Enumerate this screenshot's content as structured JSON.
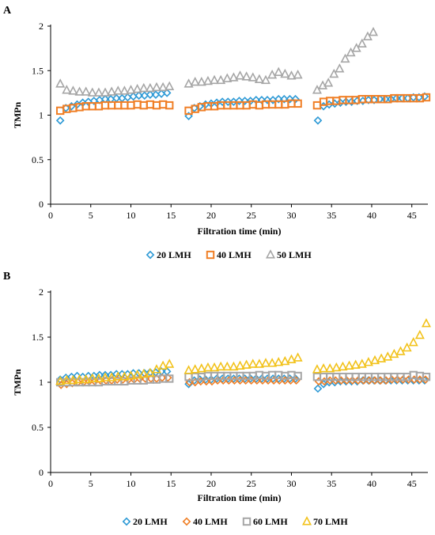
{
  "chart_data": [
    {
      "panel_label": "A",
      "type": "scatter",
      "xlabel": "Filtration time (min)",
      "ylabel": "TMPn",
      "xlim": [
        0,
        47
      ],
      "ylim": [
        0,
        2
      ],
      "xticks": [
        0,
        5,
        10,
        15,
        20,
        25,
        30,
        35,
        40,
        45
      ],
      "yticks": [
        0,
        0.5,
        1,
        1.5,
        2
      ],
      "grid": false,
      "legend_position": "bottom",
      "series": [
        {
          "name": "20 LMH",
          "marker": "diamond",
          "color": "#2E9AD6",
          "x": [
            1.2,
            1.9,
            2.6,
            3.3,
            4.0,
            4.7,
            5.4,
            6.1,
            6.8,
            7.5,
            8.2,
            8.9,
            9.6,
            10.3,
            11.0,
            11.7,
            12.4,
            13.1,
            13.8,
            14.5,
            17.2,
            17.9,
            18.6,
            19.3,
            20.0,
            20.7,
            21.4,
            22.1,
            22.8,
            23.5,
            24.2,
            24.9,
            25.6,
            26.3,
            27.0,
            27.7,
            28.4,
            29.1,
            29.8,
            30.5,
            33.3,
            34.0,
            34.7,
            35.4,
            36.1,
            36.8,
            37.5,
            38.2,
            38.9,
            39.6,
            40.3,
            41.0,
            41.7,
            42.4,
            43.1,
            43.8,
            44.5,
            45.2,
            45.9,
            46.6
          ],
          "y": [
            0.94,
            1.08,
            1.1,
            1.12,
            1.14,
            1.15,
            1.16,
            1.17,
            1.18,
            1.18,
            1.19,
            1.19,
            1.2,
            1.21,
            1.22,
            1.22,
            1.23,
            1.23,
            1.24,
            1.25,
            0.99,
            1.08,
            1.1,
            1.12,
            1.13,
            1.14,
            1.15,
            1.15,
            1.15,
            1.16,
            1.16,
            1.16,
            1.17,
            1.17,
            1.17,
            1.17,
            1.18,
            1.18,
            1.18,
            1.18,
            0.94,
            1.1,
            1.12,
            1.13,
            1.14,
            1.15,
            1.15,
            1.16,
            1.16,
            1.17,
            1.17,
            1.18,
            1.18,
            1.18,
            1.19,
            1.19,
            1.19,
            1.2,
            1.2,
            1.21
          ]
        },
        {
          "name": "40 LMH",
          "marker": "square",
          "color": "#F07F26",
          "x": [
            1.2,
            2.0,
            2.8,
            3.6,
            4.4,
            5.2,
            6.0,
            6.8,
            7.6,
            8.4,
            9.2,
            10.0,
            10.8,
            11.6,
            12.4,
            13.2,
            14.0,
            14.8,
            17.2,
            18.0,
            18.8,
            19.6,
            20.4,
            21.2,
            22.0,
            22.8,
            23.6,
            24.4,
            25.2,
            26.0,
            26.8,
            27.6,
            28.4,
            29.2,
            30.0,
            30.8,
            33.2,
            34.0,
            34.8,
            35.6,
            36.4,
            37.2,
            38.0,
            38.8,
            39.6,
            40.4,
            41.2,
            42.0,
            42.8,
            43.6,
            44.4,
            45.2,
            46.0,
            46.8
          ],
          "y": [
            1.05,
            1.07,
            1.08,
            1.09,
            1.1,
            1.1,
            1.1,
            1.11,
            1.11,
            1.11,
            1.11,
            1.11,
            1.12,
            1.11,
            1.12,
            1.11,
            1.12,
            1.11,
            1.05,
            1.07,
            1.09,
            1.1,
            1.1,
            1.11,
            1.11,
            1.11,
            1.11,
            1.11,
            1.12,
            1.11,
            1.12,
            1.12,
            1.12,
            1.12,
            1.13,
            1.13,
            1.11,
            1.15,
            1.16,
            1.16,
            1.17,
            1.17,
            1.17,
            1.18,
            1.18,
            1.18,
            1.18,
            1.18,
            1.19,
            1.19,
            1.19,
            1.19,
            1.19,
            1.2
          ]
        },
        {
          "name": "50 LMH",
          "marker": "triangle",
          "color": "#A6A6A6",
          "x": [
            1.2,
            2.0,
            2.8,
            3.6,
            4.4,
            5.2,
            6.0,
            6.8,
            7.6,
            8.4,
            9.2,
            10.0,
            10.8,
            11.6,
            12.4,
            13.2,
            14.0,
            14.8,
            17.2,
            18.0,
            18.8,
            19.6,
            20.4,
            21.2,
            22.0,
            22.8,
            23.6,
            24.4,
            25.2,
            26.0,
            26.8,
            27.6,
            28.4,
            29.2,
            30.0,
            30.8,
            33.2,
            33.9,
            34.6,
            35.3,
            36.0,
            36.7,
            37.4,
            38.1,
            38.8,
            39.5,
            40.2
          ],
          "y": [
            1.35,
            1.28,
            1.27,
            1.26,
            1.26,
            1.25,
            1.25,
            1.25,
            1.26,
            1.27,
            1.27,
            1.28,
            1.29,
            1.3,
            1.3,
            1.31,
            1.31,
            1.32,
            1.35,
            1.37,
            1.37,
            1.38,
            1.39,
            1.39,
            1.41,
            1.42,
            1.44,
            1.43,
            1.42,
            1.4,
            1.39,
            1.45,
            1.48,
            1.46,
            1.44,
            1.45,
            1.28,
            1.33,
            1.36,
            1.46,
            1.52,
            1.63,
            1.7,
            1.75,
            1.8,
            1.88,
            1.93
          ]
        }
      ]
    },
    {
      "panel_label": "B",
      "type": "scatter",
      "xlabel": "Filtration time (min)",
      "ylabel": "TMPn",
      "xlim": [
        0,
        47
      ],
      "ylim": [
        0,
        2
      ],
      "xticks": [
        0,
        5,
        10,
        15,
        20,
        25,
        30,
        35,
        40,
        45
      ],
      "yticks": [
        0,
        0.5,
        1,
        1.5,
        2
      ],
      "grid": false,
      "legend_position": "bottom",
      "series": [
        {
          "name": "20 LMH",
          "marker": "diamond",
          "color": "#2E9AD6",
          "x": [
            1.2,
            1.9,
            2.6,
            3.3,
            4.0,
            4.7,
            5.4,
            6.1,
            6.8,
            7.5,
            8.2,
            8.9,
            9.6,
            10.3,
            11.0,
            11.7,
            12.4,
            13.1,
            13.8,
            14.5,
            17.2,
            17.9,
            18.6,
            19.3,
            20.0,
            20.7,
            21.4,
            22.1,
            22.8,
            23.5,
            24.2,
            24.9,
            25.6,
            26.3,
            27.0,
            27.7,
            28.4,
            29.1,
            29.8,
            30.5,
            33.3,
            34.0,
            34.7,
            35.4,
            36.1,
            36.8,
            37.5,
            38.2,
            38.9,
            39.6,
            40.3,
            41.0,
            41.7,
            42.4,
            43.1,
            43.8,
            44.5,
            45.2,
            45.9,
            46.6
          ],
          "y": [
            1.03,
            1.05,
            1.06,
            1.07,
            1.06,
            1.07,
            1.07,
            1.08,
            1.08,
            1.08,
            1.09,
            1.09,
            1.09,
            1.1,
            1.1,
            1.1,
            1.11,
            1.11,
            1.12,
            1.12,
            0.98,
            1.02,
            1.03,
            1.03,
            1.03,
            1.04,
            1.04,
            1.04,
            1.04,
            1.04,
            1.04,
            1.04,
            1.04,
            1.04,
            1.04,
            1.04,
            1.04,
            1.04,
            1.04,
            1.04,
            0.93,
            0.98,
            1.0,
            1.0,
            1.01,
            1.01,
            1.01,
            1.01,
            1.02,
            1.02,
            1.02,
            1.02,
            1.02,
            1.02,
            1.02,
            1.02,
            1.02,
            1.02,
            1.02,
            1.02
          ]
        },
        {
          "name": "40 LMH",
          "marker": "diamond",
          "color": "#F07F26",
          "x": [
            1.3,
            2.0,
            2.7,
            3.4,
            4.1,
            4.8,
            5.5,
            6.2,
            6.9,
            7.6,
            8.3,
            9.0,
            9.7,
            10.4,
            11.1,
            11.8,
            12.5,
            13.2,
            13.9,
            14.6,
            17.3,
            18.0,
            18.7,
            19.4,
            20.1,
            20.8,
            21.5,
            22.2,
            22.9,
            23.6,
            24.3,
            25.0,
            25.7,
            26.4,
            27.1,
            27.8,
            28.5,
            29.2,
            29.9,
            30.6,
            33.4,
            34.1,
            34.8,
            35.5,
            36.2,
            36.9,
            37.6,
            38.3,
            39.0,
            39.7,
            40.4,
            41.1,
            41.8,
            42.5,
            43.2,
            43.9,
            44.6,
            45.3,
            46.0,
            46.7
          ],
          "y": [
            0.97,
            0.98,
            0.99,
            1.0,
            1.0,
            1.01,
            1.01,
            1.02,
            1.02,
            1.02,
            1.03,
            1.03,
            1.03,
            1.03,
            1.04,
            1.04,
            1.04,
            1.04,
            1.05,
            1.05,
            1.0,
            1.0,
            1.01,
            1.01,
            1.01,
            1.02,
            1.02,
            1.02,
            1.02,
            1.02,
            1.02,
            1.02,
            1.02,
            1.02,
            1.02,
            1.02,
            1.02,
            1.02,
            1.02,
            1.02,
            1.01,
            1.01,
            1.02,
            1.02,
            1.02,
            1.02,
            1.02,
            1.02,
            1.02,
            1.02,
            1.02,
            1.02,
            1.02,
            1.03,
            1.03,
            1.03,
            1.03,
            1.03,
            1.03,
            1.03
          ]
        },
        {
          "name": "60 LMH",
          "marker": "square",
          "color": "#A6A6A6",
          "x": [
            1.2,
            2.0,
            2.8,
            3.6,
            4.4,
            5.2,
            6.0,
            6.8,
            7.6,
            8.4,
            9.2,
            10.0,
            10.8,
            11.6,
            12.4,
            13.2,
            14.0,
            14.8,
            17.2,
            18.0,
            18.8,
            19.6,
            20.4,
            21.2,
            22.0,
            22.8,
            23.6,
            24.4,
            25.2,
            26.0,
            26.8,
            27.6,
            28.4,
            29.2,
            30.0,
            30.8,
            33.2,
            34.0,
            34.8,
            35.6,
            36.4,
            37.2,
            38.0,
            38.8,
            39.6,
            40.4,
            41.2,
            42.0,
            42.8,
            43.6,
            44.4,
            45.2,
            46.0,
            46.8
          ],
          "y": [
            1.0,
            1.0,
            1.0,
            1.0,
            1.0,
            1.0,
            1.0,
            1.01,
            1.01,
            1.01,
            1.01,
            1.02,
            1.02,
            1.02,
            1.03,
            1.03,
            1.04,
            1.04,
            1.06,
            1.06,
            1.06,
            1.07,
            1.07,
            1.07,
            1.07,
            1.07,
            1.07,
            1.07,
            1.07,
            1.08,
            1.07,
            1.08,
            1.08,
            1.07,
            1.08,
            1.07,
            1.06,
            1.06,
            1.06,
            1.06,
            1.06,
            1.06,
            1.06,
            1.06,
            1.06,
            1.06,
            1.06,
            1.06,
            1.06,
            1.06,
            1.06,
            1.08,
            1.07,
            1.06
          ]
        },
        {
          "name": "70 LMH",
          "marker": "triangle",
          "color": "#F2C21B",
          "x": [
            1.2,
            2.0,
            2.8,
            3.6,
            4.4,
            5.2,
            6.0,
            6.8,
            7.6,
            8.4,
            9.2,
            10.0,
            10.8,
            11.6,
            12.4,
            13.2,
            14.0,
            14.8,
            17.2,
            18.0,
            18.8,
            19.6,
            20.4,
            21.2,
            22.0,
            22.8,
            23.6,
            24.4,
            25.2,
            26.0,
            26.8,
            27.6,
            28.4,
            29.2,
            30.0,
            30.8,
            33.2,
            34.0,
            34.8,
            35.6,
            36.4,
            37.2,
            38.0,
            38.8,
            39.6,
            40.4,
            41.2,
            42.0,
            42.8,
            43.6,
            44.4,
            45.2,
            46.0,
            46.8
          ],
          "y": [
            1.01,
            1.02,
            1.02,
            1.03,
            1.03,
            1.04,
            1.04,
            1.05,
            1.05,
            1.06,
            1.06,
            1.07,
            1.08,
            1.09,
            1.1,
            1.14,
            1.18,
            1.2,
            1.13,
            1.14,
            1.15,
            1.16,
            1.16,
            1.17,
            1.17,
            1.17,
            1.18,
            1.19,
            1.2,
            1.2,
            1.21,
            1.21,
            1.22,
            1.23,
            1.25,
            1.27,
            1.14,
            1.15,
            1.15,
            1.16,
            1.17,
            1.18,
            1.19,
            1.2,
            1.22,
            1.24,
            1.26,
            1.28,
            1.31,
            1.34,
            1.38,
            1.44,
            1.52,
            1.65
          ]
        }
      ]
    }
  ]
}
